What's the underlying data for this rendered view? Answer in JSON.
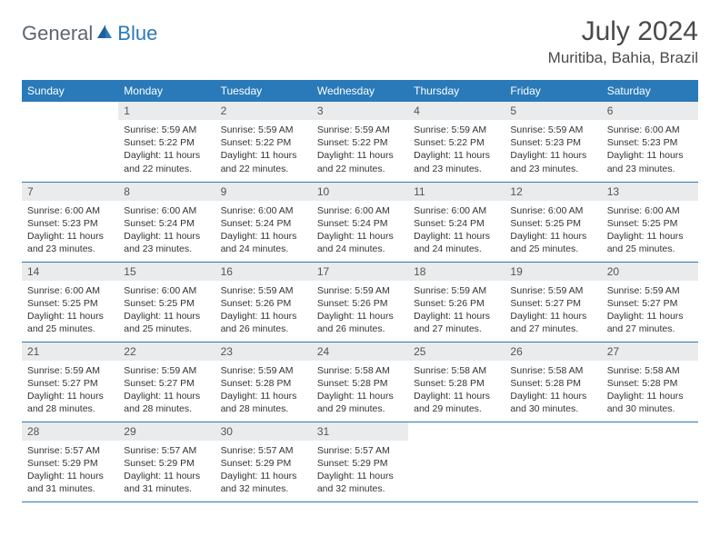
{
  "brand": {
    "part1": "General",
    "part2": "Blue"
  },
  "title": "July 2024",
  "location": "Muritiba, Bahia, Brazil",
  "colors": {
    "header_bg": "#2a7ab9",
    "header_text": "#ffffff",
    "daynum_bg": "#e9ebec",
    "row_border": "#2a7ab9",
    "page_bg": "#ffffff",
    "text": "#333333"
  },
  "weekdays": [
    "Sunday",
    "Monday",
    "Tuesday",
    "Wednesday",
    "Thursday",
    "Friday",
    "Saturday"
  ],
  "weeks": [
    [
      null,
      {
        "n": "1",
        "sr": "Sunrise: 5:59 AM",
        "ss": "Sunset: 5:22 PM",
        "dl": "Daylight: 11 hours and 22 minutes."
      },
      {
        "n": "2",
        "sr": "Sunrise: 5:59 AM",
        "ss": "Sunset: 5:22 PM",
        "dl": "Daylight: 11 hours and 22 minutes."
      },
      {
        "n": "3",
        "sr": "Sunrise: 5:59 AM",
        "ss": "Sunset: 5:22 PM",
        "dl": "Daylight: 11 hours and 22 minutes."
      },
      {
        "n": "4",
        "sr": "Sunrise: 5:59 AM",
        "ss": "Sunset: 5:22 PM",
        "dl": "Daylight: 11 hours and 23 minutes."
      },
      {
        "n": "5",
        "sr": "Sunrise: 5:59 AM",
        "ss": "Sunset: 5:23 PM",
        "dl": "Daylight: 11 hours and 23 minutes."
      },
      {
        "n": "6",
        "sr": "Sunrise: 6:00 AM",
        "ss": "Sunset: 5:23 PM",
        "dl": "Daylight: 11 hours and 23 minutes."
      }
    ],
    [
      {
        "n": "7",
        "sr": "Sunrise: 6:00 AM",
        "ss": "Sunset: 5:23 PM",
        "dl": "Daylight: 11 hours and 23 minutes."
      },
      {
        "n": "8",
        "sr": "Sunrise: 6:00 AM",
        "ss": "Sunset: 5:24 PM",
        "dl": "Daylight: 11 hours and 23 minutes."
      },
      {
        "n": "9",
        "sr": "Sunrise: 6:00 AM",
        "ss": "Sunset: 5:24 PM",
        "dl": "Daylight: 11 hours and 24 minutes."
      },
      {
        "n": "10",
        "sr": "Sunrise: 6:00 AM",
        "ss": "Sunset: 5:24 PM",
        "dl": "Daylight: 11 hours and 24 minutes."
      },
      {
        "n": "11",
        "sr": "Sunrise: 6:00 AM",
        "ss": "Sunset: 5:24 PM",
        "dl": "Daylight: 11 hours and 24 minutes."
      },
      {
        "n": "12",
        "sr": "Sunrise: 6:00 AM",
        "ss": "Sunset: 5:25 PM",
        "dl": "Daylight: 11 hours and 25 minutes."
      },
      {
        "n": "13",
        "sr": "Sunrise: 6:00 AM",
        "ss": "Sunset: 5:25 PM",
        "dl": "Daylight: 11 hours and 25 minutes."
      }
    ],
    [
      {
        "n": "14",
        "sr": "Sunrise: 6:00 AM",
        "ss": "Sunset: 5:25 PM",
        "dl": "Daylight: 11 hours and 25 minutes."
      },
      {
        "n": "15",
        "sr": "Sunrise: 6:00 AM",
        "ss": "Sunset: 5:25 PM",
        "dl": "Daylight: 11 hours and 25 minutes."
      },
      {
        "n": "16",
        "sr": "Sunrise: 5:59 AM",
        "ss": "Sunset: 5:26 PM",
        "dl": "Daylight: 11 hours and 26 minutes."
      },
      {
        "n": "17",
        "sr": "Sunrise: 5:59 AM",
        "ss": "Sunset: 5:26 PM",
        "dl": "Daylight: 11 hours and 26 minutes."
      },
      {
        "n": "18",
        "sr": "Sunrise: 5:59 AM",
        "ss": "Sunset: 5:26 PM",
        "dl": "Daylight: 11 hours and 27 minutes."
      },
      {
        "n": "19",
        "sr": "Sunrise: 5:59 AM",
        "ss": "Sunset: 5:27 PM",
        "dl": "Daylight: 11 hours and 27 minutes."
      },
      {
        "n": "20",
        "sr": "Sunrise: 5:59 AM",
        "ss": "Sunset: 5:27 PM",
        "dl": "Daylight: 11 hours and 27 minutes."
      }
    ],
    [
      {
        "n": "21",
        "sr": "Sunrise: 5:59 AM",
        "ss": "Sunset: 5:27 PM",
        "dl": "Daylight: 11 hours and 28 minutes."
      },
      {
        "n": "22",
        "sr": "Sunrise: 5:59 AM",
        "ss": "Sunset: 5:27 PM",
        "dl": "Daylight: 11 hours and 28 minutes."
      },
      {
        "n": "23",
        "sr": "Sunrise: 5:59 AM",
        "ss": "Sunset: 5:28 PM",
        "dl": "Daylight: 11 hours and 28 minutes."
      },
      {
        "n": "24",
        "sr": "Sunrise: 5:58 AM",
        "ss": "Sunset: 5:28 PM",
        "dl": "Daylight: 11 hours and 29 minutes."
      },
      {
        "n": "25",
        "sr": "Sunrise: 5:58 AM",
        "ss": "Sunset: 5:28 PM",
        "dl": "Daylight: 11 hours and 29 minutes."
      },
      {
        "n": "26",
        "sr": "Sunrise: 5:58 AM",
        "ss": "Sunset: 5:28 PM",
        "dl": "Daylight: 11 hours and 30 minutes."
      },
      {
        "n": "27",
        "sr": "Sunrise: 5:58 AM",
        "ss": "Sunset: 5:28 PM",
        "dl": "Daylight: 11 hours and 30 minutes."
      }
    ],
    [
      {
        "n": "28",
        "sr": "Sunrise: 5:57 AM",
        "ss": "Sunset: 5:29 PM",
        "dl": "Daylight: 11 hours and 31 minutes."
      },
      {
        "n": "29",
        "sr": "Sunrise: 5:57 AM",
        "ss": "Sunset: 5:29 PM",
        "dl": "Daylight: 11 hours and 31 minutes."
      },
      {
        "n": "30",
        "sr": "Sunrise: 5:57 AM",
        "ss": "Sunset: 5:29 PM",
        "dl": "Daylight: 11 hours and 32 minutes."
      },
      {
        "n": "31",
        "sr": "Sunrise: 5:57 AM",
        "ss": "Sunset: 5:29 PM",
        "dl": "Daylight: 11 hours and 32 minutes."
      },
      null,
      null,
      null
    ]
  ]
}
